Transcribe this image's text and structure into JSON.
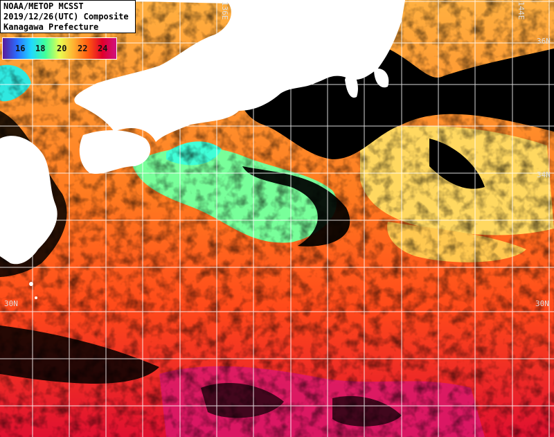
{
  "header": {
    "line1": "NOAA/METOP MCSST",
    "line2": "2019/12/26(UTC) Composite",
    "line3": "Kanagawa Prefecture"
  },
  "legend": {
    "labels": [
      "16",
      "18",
      "20",
      "22",
      "24"
    ],
    "colors": [
      "#5a1a9a",
      "#2a6cff",
      "#20d8ff",
      "#40ff9a",
      "#e8ff50",
      "#ffb030",
      "#ff5a10",
      "#e0002a",
      "#d01080"
    ]
  },
  "map_labels": {
    "lon_136": "136E",
    "lon_144": "144E",
    "lat_36": "36N",
    "lat_34": "34N",
    "lat_30_left": "30N",
    "lat_30_right": "30N"
  },
  "colors": {
    "land": "#ffffff",
    "cloud": "#000000",
    "grid": "#ffffff",
    "warm_sst": "#ff5a1a",
    "hot_sst": "#e4102a",
    "cool_sst": "#70ff90",
    "mid_sst": "#ffd860"
  }
}
